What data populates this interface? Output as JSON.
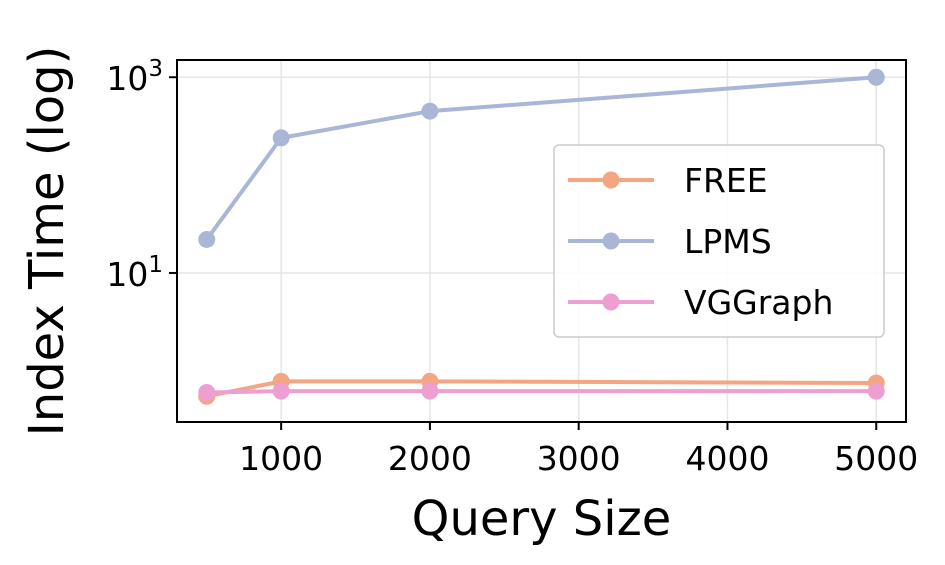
{
  "chart_data": {
    "type": "line",
    "title": "",
    "xlabel": "Query Size",
    "ylabel": "Index Time (log)",
    "x": [
      500,
      1000,
      2000,
      5000
    ],
    "xlim": [
      300,
      5200
    ],
    "xticks": [
      1000,
      2000,
      3000,
      4000,
      5000
    ],
    "yscale": "log",
    "ylim": [
      0.3,
      1500
    ],
    "yticks": [
      {
        "value": 10,
        "base": "10",
        "exp": "1"
      },
      {
        "value": 1000,
        "base": "10",
        "exp": "3"
      }
    ],
    "grid": true,
    "legend_position": "center-right",
    "series": [
      {
        "name": "FREE",
        "color": "#f4a582",
        "values": [
          0.55,
          0.78,
          0.78,
          0.75
        ]
      },
      {
        "name": "LPMS",
        "color": "#a9b6d6",
        "values": [
          22,
          240,
          450,
          1000
        ]
      },
      {
        "name": "VGGraph",
        "color": "#ed9fd2",
        "values": [
          0.6,
          0.62,
          0.62,
          0.62
        ]
      }
    ]
  }
}
